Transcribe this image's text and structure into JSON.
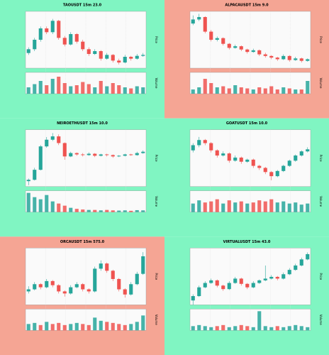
{
  "chart_data": [
    {
      "type": "candlestick",
      "title": "TAOUSDT 15m 23.0",
      "background": "#80f5c2",
      "up_color": "#26a69a",
      "down_color": "#ef5350",
      "y_label": "Price",
      "v_label": "Volume",
      "ylim": [
        30,
        90
      ],
      "vlim": [
        0,
        100
      ],
      "candles": [
        [
          46,
          52,
          44,
          50
        ],
        [
          50,
          62,
          48,
          60
        ],
        [
          60,
          74,
          58,
          72
        ],
        [
          72,
          74,
          66,
          68
        ],
        [
          68,
          82,
          66,
          80
        ],
        [
          80,
          81,
          60,
          62
        ],
        [
          62,
          64,
          53,
          55
        ],
        [
          55,
          68,
          54,
          66
        ],
        [
          66,
          67,
          56,
          58
        ],
        [
          58,
          60,
          48,
          50
        ],
        [
          50,
          52,
          43,
          45
        ],
        [
          45,
          50,
          44,
          48
        ],
        [
          48,
          49,
          38,
          40
        ],
        [
          40,
          46,
          39,
          44
        ],
        [
          44,
          45,
          36,
          38
        ],
        [
          38,
          40,
          34,
          36
        ],
        [
          36,
          44,
          35,
          42
        ],
        [
          42,
          43,
          38,
          40
        ],
        [
          40,
          45,
          39,
          43
        ],
        [
          43,
          46,
          42,
          44
        ]
      ],
      "volume": [
        30,
        45,
        60,
        40,
        70,
        80,
        50,
        35,
        40,
        55,
        45,
        30,
        60,
        35,
        50,
        40,
        30,
        25,
        35,
        30
      ]
    },
    {
      "type": "candlestick",
      "title": "ALPACAUSDT 15m 9.0",
      "background": "#f5a594",
      "up_color": "#26a69a",
      "down_color": "#ef5350",
      "y_label": "Price",
      "v_label": "Volume",
      "ylim": [
        25,
        95
      ],
      "vlim": [
        0,
        100
      ],
      "candles": [
        [
          80,
          90,
          78,
          85
        ],
        [
          85,
          92,
          83,
          88
        ],
        [
          88,
          89,
          68,
          70
        ],
        [
          70,
          72,
          58,
          60
        ],
        [
          60,
          64,
          58,
          62
        ],
        [
          62,
          63,
          53,
          55
        ],
        [
          55,
          56,
          48,
          50
        ],
        [
          50,
          54,
          49,
          52
        ],
        [
          52,
          53,
          46,
          48
        ],
        [
          48,
          49,
          43,
          45
        ],
        [
          45,
          49,
          44,
          47
        ],
        [
          47,
          48,
          40,
          42
        ],
        [
          42,
          44,
          38,
          40
        ],
        [
          40,
          41,
          36,
          38
        ],
        [
          38,
          39,
          34,
          36
        ],
        [
          36,
          42,
          35,
          40
        ],
        [
          40,
          41,
          33,
          35
        ],
        [
          35,
          39,
          34,
          37
        ],
        [
          37,
          38,
          32,
          34
        ],
        [
          34,
          37,
          33,
          36
        ]
      ],
      "volume": [
        20,
        30,
        70,
        50,
        30,
        35,
        25,
        40,
        30,
        25,
        20,
        30,
        25,
        35,
        20,
        30,
        25,
        20,
        20,
        60
      ]
    },
    {
      "type": "candlestick",
      "title": "NEIROETHUSDT 15m 10.0",
      "background": "#80f5c2",
      "up_color": "#26a69a",
      "down_color": "#ef5350",
      "y_label": "Price",
      "v_label": "Volume",
      "ylim": [
        10,
        95
      ],
      "vlim": [
        0,
        100
      ],
      "candles": [
        [
          18,
          22,
          12,
          20
        ],
        [
          20,
          38,
          19,
          35
        ],
        [
          35,
          72,
          34,
          70
        ],
        [
          70,
          84,
          68,
          80
        ],
        [
          80,
          90,
          78,
          85
        ],
        [
          85,
          88,
          72,
          75
        ],
        [
          75,
          76,
          50,
          55
        ],
        [
          55,
          62,
          54,
          60
        ],
        [
          60,
          61,
          56,
          58
        ],
        [
          58,
          60,
          55,
          57
        ],
        [
          57,
          61,
          56,
          59
        ],
        [
          59,
          60,
          54,
          56
        ],
        [
          56,
          59,
          55,
          58
        ],
        [
          58,
          59,
          55,
          57
        ],
        [
          57,
          58,
          53,
          55
        ],
        [
          55,
          57,
          54,
          56
        ],
        [
          56,
          59,
          55,
          58
        ],
        [
          58,
          59,
          56,
          57
        ],
        [
          57,
          62,
          56,
          60
        ],
        [
          60,
          64,
          59,
          62
        ]
      ],
      "volume": [
        90,
        70,
        60,
        80,
        50,
        40,
        30,
        20,
        15,
        12,
        10,
        10,
        8,
        10,
        8,
        7,
        8,
        6,
        9,
        8
      ]
    },
    {
      "type": "candlestick",
      "title": "GOATUSDT 15m 10.0",
      "background": "#80f5c2",
      "up_color": "#26a69a",
      "down_color": "#ef5350",
      "y_label": "Price",
      "v_label": "Volume",
      "ylim": [
        30,
        85
      ],
      "vlim": [
        0,
        100
      ],
      "candles": [
        [
          65,
          72,
          63,
          70
        ],
        [
          70,
          78,
          68,
          75
        ],
        [
          75,
          76,
          70,
          72
        ],
        [
          72,
          73,
          63,
          65
        ],
        [
          65,
          66,
          58,
          60
        ],
        [
          60,
          64,
          59,
          62
        ],
        [
          62,
          63,
          53,
          55
        ],
        [
          55,
          60,
          54,
          58
        ],
        [
          58,
          59,
          52,
          54
        ],
        [
          54,
          57,
          53,
          56
        ],
        [
          56,
          57,
          48,
          50
        ],
        [
          50,
          51,
          46,
          48
        ],
        [
          48,
          49,
          42,
          44
        ],
        [
          44,
          45,
          36,
          40
        ],
        [
          40,
          46,
          39,
          45
        ],
        [
          45,
          51,
          44,
          50
        ],
        [
          50,
          56,
          49,
          55
        ],
        [
          55,
          61,
          54,
          60
        ],
        [
          60,
          65,
          59,
          64
        ],
        [
          64,
          68,
          63,
          66
        ]
      ],
      "volume": [
        40,
        55,
        45,
        50,
        60,
        40,
        55,
        45,
        50,
        40,
        45,
        55,
        50,
        60,
        45,
        50,
        40,
        45,
        35,
        40
      ]
    },
    {
      "type": "candlestick",
      "title": "ORCAUSDT 15m 575.0",
      "background": "#f5a594",
      "up_color": "#26a69a",
      "down_color": "#ef5350",
      "y_label": "Price",
      "v_label": "Volume",
      "ylim": [
        25,
        80
      ],
      "vlim": [
        0,
        100
      ],
      "candles": [
        [
          38,
          43,
          36,
          40
        ],
        [
          40,
          47,
          39,
          45
        ],
        [
          45,
          46,
          40,
          42
        ],
        [
          42,
          50,
          41,
          48
        ],
        [
          48,
          49,
          42,
          44
        ],
        [
          44,
          45,
          36,
          38
        ],
        [
          38,
          39,
          33,
          36
        ],
        [
          36,
          44,
          35,
          42
        ],
        [
          42,
          47,
          41,
          45
        ],
        [
          45,
          46,
          38,
          40
        ],
        [
          40,
          41,
          36,
          38
        ],
        [
          38,
          62,
          37,
          60
        ],
        [
          60,
          68,
          58,
          65
        ],
        [
          65,
          66,
          56,
          58
        ],
        [
          58,
          59,
          48,
          50
        ],
        [
          50,
          51,
          38,
          40
        ],
        [
          40,
          41,
          32,
          35
        ],
        [
          35,
          47,
          34,
          45
        ],
        [
          45,
          57,
          44,
          55
        ],
        [
          55,
          76,
          54,
          72
        ]
      ],
      "volume": [
        30,
        35,
        25,
        40,
        30,
        35,
        25,
        30,
        35,
        30,
        25,
        60,
        45,
        40,
        35,
        30,
        25,
        30,
        40,
        70
      ]
    },
    {
      "type": "candlestick",
      "title": "VIRTUALUSDT 15m 43.0",
      "background": "#80f5c2",
      "up_color": "#26a69a",
      "down_color": "#ef5350",
      "y_label": "Price",
      "v_label": "Volume",
      "ylim": [
        20,
        85
      ],
      "vlim": [
        0,
        100
      ],
      "candles": [
        [
          25,
          32,
          20,
          30
        ],
        [
          30,
          42,
          29,
          40
        ],
        [
          40,
          47,
          39,
          45
        ],
        [
          45,
          50,
          44,
          48
        ],
        [
          48,
          49,
          40,
          42
        ],
        [
          42,
          43,
          36,
          38
        ],
        [
          38,
          47,
          37,
          45
        ],
        [
          45,
          52,
          44,
          50
        ],
        [
          50,
          51,
          42,
          44
        ],
        [
          44,
          45,
          38,
          40
        ],
        [
          40,
          47,
          39,
          45
        ],
        [
          45,
          49,
          44,
          48
        ],
        [
          48,
          65,
          47,
          50
        ],
        [
          50,
          54,
          49,
          52
        ],
        [
          52,
          53,
          48,
          50
        ],
        [
          50,
          57,
          49,
          55
        ],
        [
          55,
          62,
          54,
          60
        ],
        [
          60,
          67,
          59,
          65
        ],
        [
          65,
          74,
          64,
          72
        ],
        [
          72,
          80,
          71,
          78
        ]
      ],
      "volume": [
        20,
        25,
        20,
        15,
        20,
        25,
        15,
        20,
        25,
        20,
        15,
        90,
        20,
        15,
        20,
        15,
        20,
        25,
        20,
        15
      ]
    }
  ]
}
